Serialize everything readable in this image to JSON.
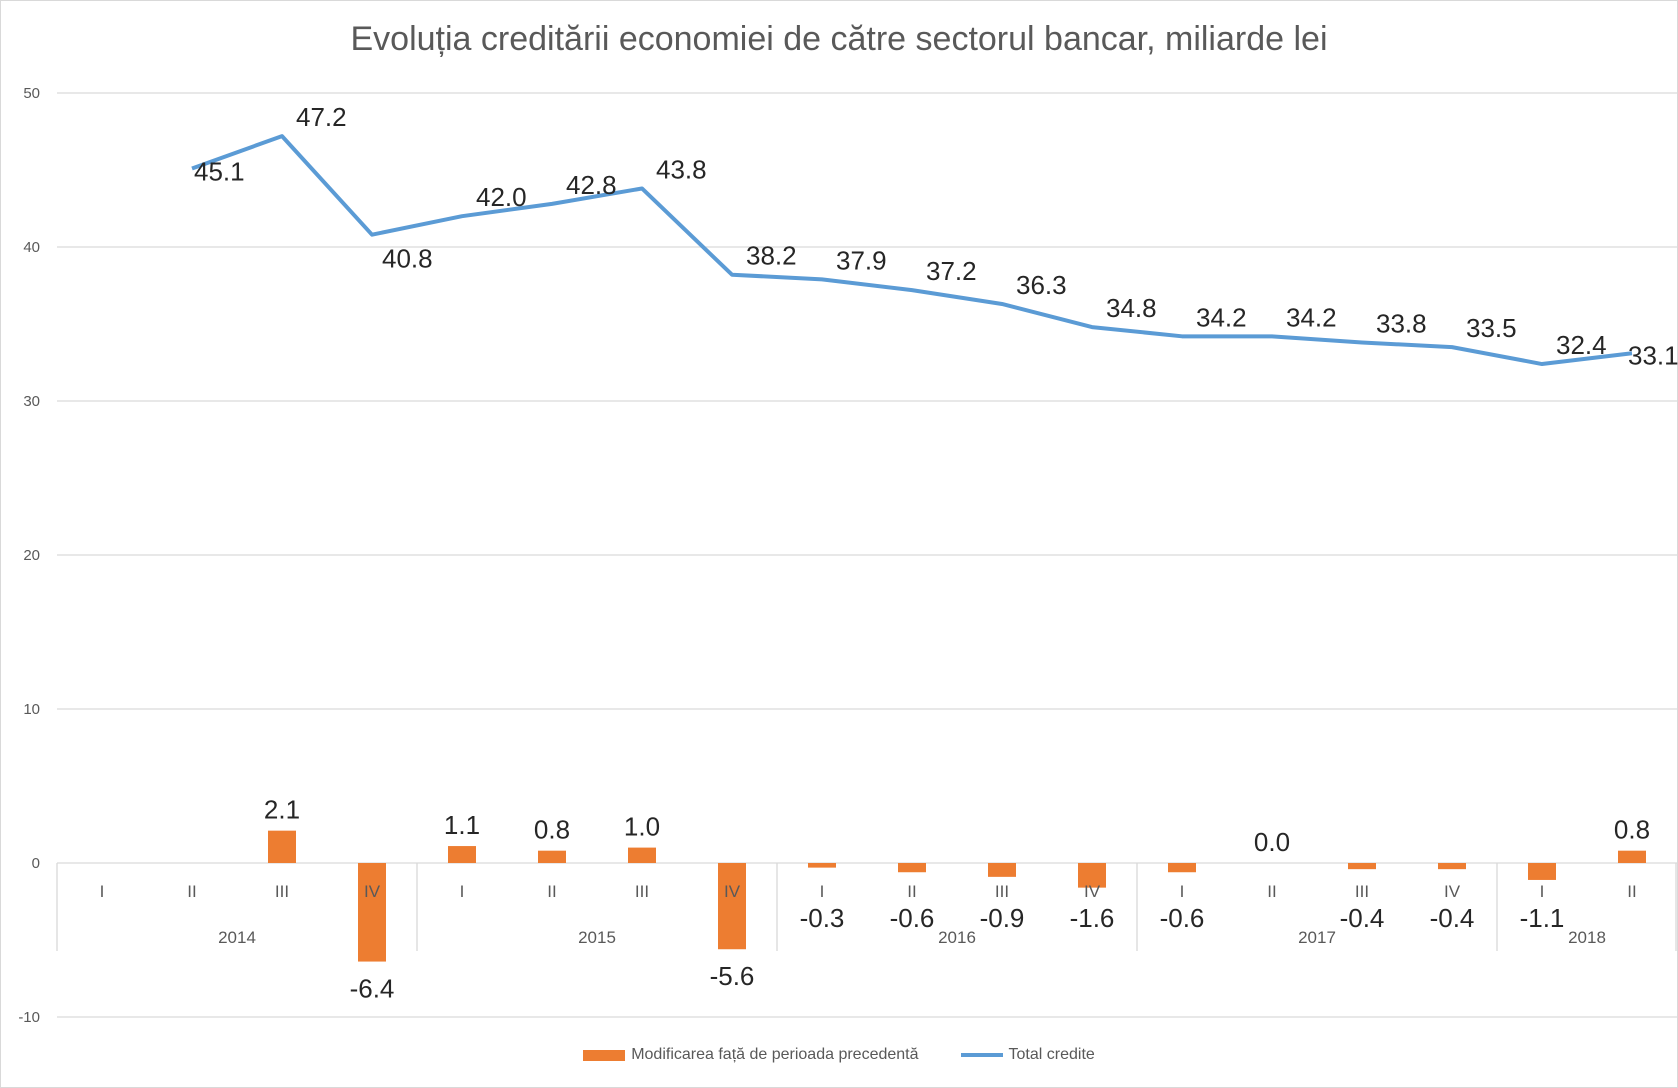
{
  "chart_data": {
    "type": "bar",
    "title": "Evoluția creditării economiei de către sectorul bancar, miliarde lei",
    "ylim": [
      -10,
      50
    ],
    "yticks": [
      "-10",
      "0",
      "10",
      "20",
      "30",
      "40",
      "50"
    ],
    "grid": true,
    "legend_position": "bottom",
    "categories": [
      "I",
      "II",
      "III",
      "IV",
      "I",
      "II",
      "III",
      "IV",
      "I",
      "II",
      "III",
      "IV",
      "I",
      "II",
      "III",
      "IV",
      "I",
      "II"
    ],
    "years": [
      {
        "label": "2014",
        "start": 0,
        "end": 3
      },
      {
        "label": "2015",
        "start": 4,
        "end": 7
      },
      {
        "label": "2016",
        "start": 8,
        "end": 11
      },
      {
        "label": "2017",
        "start": 12,
        "end": 15
      },
      {
        "label": "2018",
        "start": 16,
        "end": 17
      }
    ],
    "series": [
      {
        "name": "Modificarea față de perioada precedentă",
        "type": "bar",
        "color": "#ed7d31",
        "values": [
          null,
          null,
          2.1,
          -6.4,
          1.1,
          0.8,
          1.0,
          -5.6,
          -0.3,
          -0.6,
          -0.9,
          -1.6,
          -0.6,
          0.0,
          -0.4,
          -0.4,
          -1.1,
          0.8
        ],
        "labels": [
          "",
          "",
          "2.1",
          "-6.4",
          "1.1",
          "0.8",
          "1.0",
          "-5.6",
          "-0.3",
          "-0.6",
          "-0.9",
          "-1.6",
          "-0.6",
          "0.0",
          "-0.4",
          "-0.4",
          "-1.1",
          "0.8"
        ]
      },
      {
        "name": "Total credite",
        "type": "line",
        "color": "#5b9bd5",
        "values": [
          null,
          45.1,
          47.2,
          40.8,
          42.0,
          42.8,
          43.8,
          38.2,
          37.9,
          37.2,
          36.3,
          34.8,
          34.2,
          34.2,
          33.8,
          33.5,
          32.4,
          33.1
        ],
        "labels": [
          "",
          "45.1",
          "47.2",
          "40.8",
          "42.0",
          "42.8",
          "43.8",
          "38.2",
          "37.9",
          "37.2",
          "36.3",
          "34.8",
          "34.2",
          "34.2",
          "33.8",
          "33.5",
          "32.4",
          "33.1"
        ]
      }
    ]
  }
}
